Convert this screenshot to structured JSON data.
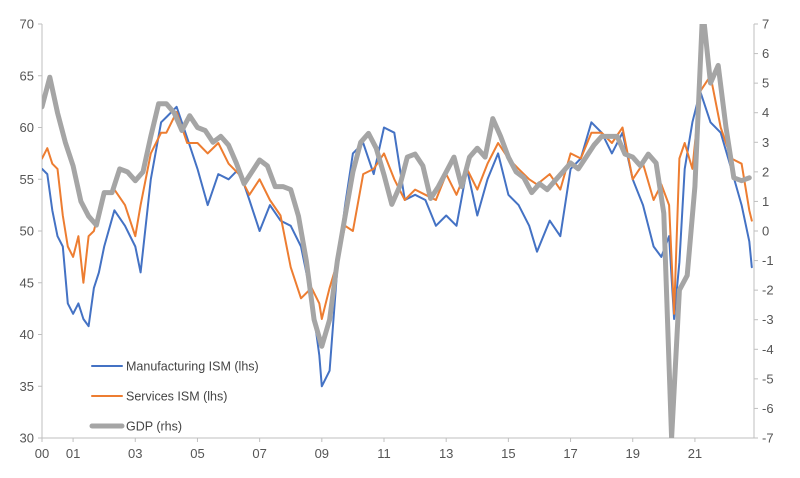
{
  "chart_data": {
    "type": "line",
    "x_unit": "year",
    "xlim": [
      2000,
      2022.9
    ],
    "x_ticks": [
      2000,
      2001,
      2003,
      2005,
      2007,
      2009,
      2011,
      2013,
      2015,
      2017,
      2019,
      2021
    ],
    "x_tick_labels": [
      "00",
      "01",
      "03",
      "05",
      "07",
      "09",
      "11",
      "13",
      "15",
      "17",
      "19",
      "21"
    ],
    "y_left": {
      "lim": [
        30,
        70
      ],
      "ticks": [
        30,
        35,
        40,
        45,
        50,
        55,
        60,
        65,
        70
      ]
    },
    "y_right": {
      "lim": [
        -7,
        7
      ],
      "ticks": [
        -7,
        -6,
        -5,
        -4,
        -3,
        -2,
        -1,
        0,
        1,
        2,
        3,
        4,
        5,
        6,
        7
      ]
    },
    "grid": false,
    "legend_placement": "bottom-left",
    "series": [
      {
        "name": "Manufacturing ISM (lhs)",
        "axis": "left",
        "color": "#4472C4",
        "width": 2,
        "x": [
          2000.0,
          2000.17,
          2000.33,
          2000.5,
          2000.67,
          2000.83,
          2001.0,
          2001.17,
          2001.33,
          2001.5,
          2001.67,
          2001.83,
          2002.0,
          2002.33,
          2002.67,
          2003.0,
          2003.17,
          2003.5,
          2003.83,
          2004.0,
          2004.33,
          2004.67,
          2005.0,
          2005.33,
          2005.67,
          2006.0,
          2006.33,
          2006.67,
          2007.0,
          2007.33,
          2007.67,
          2008.0,
          2008.33,
          2008.67,
          2008.92,
          2009.0,
          2009.25,
          2009.5,
          2009.75,
          2010.0,
          2010.33,
          2010.67,
          2011.0,
          2011.33,
          2011.67,
          2012.0,
          2012.33,
          2012.67,
          2013.0,
          2013.33,
          2013.67,
          2014.0,
          2014.33,
          2014.67,
          2015.0,
          2015.33,
          2015.67,
          2015.92,
          2016.33,
          2016.67,
          2017.0,
          2017.33,
          2017.67,
          2018.0,
          2018.33,
          2018.67,
          2019.0,
          2019.33,
          2019.67,
          2019.92,
          2020.17,
          2020.33,
          2020.5,
          2020.67,
          2020.92,
          2021.17,
          2021.5,
          2021.83,
          2022.17,
          2022.5,
          2022.75,
          2022.83
        ],
        "y": [
          56.0,
          55.5,
          52.0,
          49.5,
          48.5,
          43.0,
          42.0,
          43.0,
          41.5,
          40.8,
          44.5,
          46.0,
          48.5,
          52.0,
          50.5,
          48.5,
          46.0,
          55.0,
          60.5,
          61.0,
          62.0,
          59.0,
          56.0,
          52.5,
          55.5,
          55.0,
          56.0,
          53.0,
          50.0,
          52.5,
          51.0,
          50.5,
          48.5,
          43.5,
          38.0,
          35.0,
          36.5,
          46.5,
          52.5,
          57.5,
          58.5,
          55.5,
          60.0,
          59.5,
          53.0,
          53.5,
          53.0,
          50.5,
          51.5,
          50.5,
          56.0,
          51.5,
          55.0,
          57.5,
          53.5,
          52.5,
          50.5,
          48.0,
          51.0,
          49.5,
          56.0,
          57.0,
          60.5,
          59.5,
          57.5,
          59.5,
          55.0,
          52.5,
          48.5,
          47.5,
          49.5,
          41.5,
          47.0,
          56.0,
          60.5,
          63.5,
          60.5,
          59.5,
          56.0,
          52.5,
          49.0,
          46.5
        ]
      },
      {
        "name": "Services ISM (lhs)",
        "axis": "left",
        "color": "#ED7D31",
        "width": 2,
        "x": [
          2000.0,
          2000.17,
          2000.33,
          2000.5,
          2000.67,
          2000.83,
          2001.0,
          2001.17,
          2001.33,
          2001.5,
          2001.67,
          2001.83,
          2002.0,
          2002.33,
          2002.67,
          2003.0,
          2003.17,
          2003.5,
          2003.83,
          2004.0,
          2004.33,
          2004.67,
          2005.0,
          2005.33,
          2005.67,
          2006.0,
          2006.33,
          2006.67,
          2007.0,
          2007.33,
          2007.67,
          2008.0,
          2008.33,
          2008.67,
          2008.92,
          2009.0,
          2009.25,
          2009.5,
          2009.75,
          2010.0,
          2010.33,
          2010.67,
          2011.0,
          2011.33,
          2011.67,
          2012.0,
          2012.33,
          2012.67,
          2013.0,
          2013.33,
          2013.67,
          2014.0,
          2014.33,
          2014.67,
          2015.0,
          2015.33,
          2015.67,
          2015.92,
          2016.33,
          2016.67,
          2017.0,
          2017.33,
          2017.67,
          2018.0,
          2018.33,
          2018.67,
          2019.0,
          2019.33,
          2019.67,
          2019.92,
          2020.17,
          2020.33,
          2020.5,
          2020.67,
          2020.92,
          2021.17,
          2021.5,
          2021.83,
          2022.17,
          2022.5,
          2022.75,
          2022.83
        ],
        "y": [
          57.0,
          58.0,
          56.5,
          56.0,
          51.5,
          48.5,
          47.5,
          49.5,
          45.0,
          49.5,
          50.0,
          52.0,
          53.5,
          54.0,
          52.5,
          49.5,
          52.5,
          57.5,
          59.5,
          59.5,
          61.5,
          58.5,
          58.5,
          57.5,
          58.5,
          56.5,
          55.5,
          53.5,
          55.0,
          53.0,
          51.5,
          46.5,
          43.5,
          44.5,
          43.0,
          41.5,
          44.5,
          47.0,
          50.5,
          50.0,
          55.5,
          56.0,
          57.5,
          55.0,
          53.0,
          54.0,
          53.5,
          53.0,
          55.5,
          53.5,
          56.0,
          54.0,
          56.5,
          58.5,
          57.0,
          56.0,
          55.0,
          54.5,
          55.5,
          54.0,
          57.5,
          57.0,
          59.5,
          59.5,
          58.5,
          60.0,
          55.0,
          56.5,
          53.0,
          54.5,
          52.5,
          42.0,
          57.0,
          58.5,
          56.0,
          63.5,
          65.0,
          60.0,
          57.0,
          56.5,
          52.0,
          51.0
        ]
      },
      {
        "name": "GDP (rhs)",
        "axis": "right",
        "color": "#A5A5A5",
        "width": 5,
        "x": [
          2000.0,
          2000.25,
          2000.5,
          2000.75,
          2001.0,
          2001.25,
          2001.5,
          2001.75,
          2002.0,
          2002.25,
          2002.5,
          2002.75,
          2003.0,
          2003.25,
          2003.5,
          2003.75,
          2004.0,
          2004.25,
          2004.5,
          2004.75,
          2005.0,
          2005.25,
          2005.5,
          2005.75,
          2006.0,
          2006.25,
          2006.5,
          2006.75,
          2007.0,
          2007.25,
          2007.5,
          2007.75,
          2008.0,
          2008.25,
          2008.5,
          2008.75,
          2009.0,
          2009.25,
          2009.5,
          2009.75,
          2010.0,
          2010.25,
          2010.5,
          2010.75,
          2011.0,
          2011.25,
          2011.5,
          2011.75,
          2012.0,
          2012.25,
          2012.5,
          2012.75,
          2013.0,
          2013.25,
          2013.5,
          2013.75,
          2014.0,
          2014.25,
          2014.5,
          2014.75,
          2015.0,
          2015.25,
          2015.5,
          2015.75,
          2016.0,
          2016.25,
          2016.5,
          2016.75,
          2017.0,
          2017.25,
          2017.5,
          2017.75,
          2018.0,
          2018.25,
          2018.5,
          2018.75,
          2019.0,
          2019.25,
          2019.5,
          2019.75,
          2020.0,
          2020.25,
          2020.5,
          2020.75,
          2021.0,
          2021.25,
          2021.5,
          2021.75,
          2022.0,
          2022.25,
          2022.5,
          2022.75
        ],
        "y": [
          4.2,
          5.2,
          4.0,
          3.0,
          2.2,
          1.0,
          0.5,
          0.2,
          1.3,
          1.3,
          2.1,
          2.0,
          1.7,
          2.0,
          3.2,
          4.3,
          4.3,
          4.0,
          3.4,
          3.9,
          3.5,
          3.4,
          3.0,
          3.2,
          2.9,
          2.3,
          1.6,
          2.0,
          2.4,
          2.2,
          1.5,
          1.5,
          1.4,
          0.5,
          -1.0,
          -3.0,
          -3.9,
          -3.0,
          -1.0,
          0.5,
          2.0,
          3.0,
          3.3,
          2.8,
          1.9,
          0.9,
          1.5,
          2.5,
          2.6,
          2.2,
          1.1,
          1.5,
          2.0,
          2.5,
          1.5,
          2.5,
          2.8,
          2.5,
          3.8,
          3.2,
          2.5,
          2.0,
          1.8,
          1.3,
          1.6,
          1.4,
          1.7,
          2.0,
          2.3,
          2.1,
          2.5,
          2.9,
          3.2,
          3.2,
          3.2,
          2.6,
          2.5,
          2.2,
          2.6,
          2.3,
          0.6,
          -7.0,
          -2.0,
          -1.5,
          1.5,
          7.5,
          5.0,
          5.6,
          3.5,
          1.8,
          1.7,
          1.8
        ]
      }
    ]
  }
}
